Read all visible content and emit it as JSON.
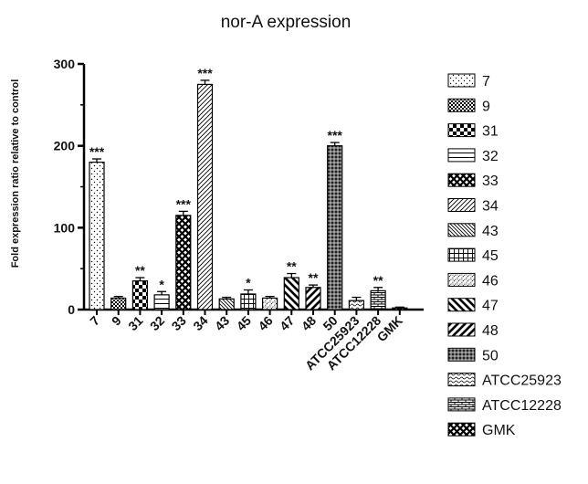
{
  "chart_data": {
    "type": "bar",
    "title": "nor-A expression",
    "ylabel": "Fold expression ratio relative to control",
    "xlabel": "",
    "ylim": [
      0,
      300
    ],
    "yticks": [
      0,
      100,
      200,
      300
    ],
    "grid": false,
    "legend": "right",
    "categories": [
      "7",
      "9",
      "31",
      "32",
      "33",
      "34",
      "43",
      "45",
      "46",
      "47",
      "48",
      "50",
      "ATCC25923",
      "ATCC12228",
      "GMK"
    ],
    "values": [
      180,
      14,
      35,
      18,
      115,
      275,
      13,
      19,
      14,
      39,
      27,
      200,
      11,
      23,
      2
    ],
    "errors": [
      4,
      2,
      4,
      4,
      5,
      5,
      2,
      5,
      2,
      5,
      3,
      4,
      4,
      4,
      1
    ],
    "significance": [
      "***",
      "",
      "**",
      "*",
      "***",
      "***",
      "",
      "*",
      "",
      "**",
      "**",
      "***",
      "",
      "**",
      ""
    ],
    "patterns": [
      "sparse-dots",
      "fine-check",
      "checker",
      "hlines",
      "cross-hatch",
      "fine-diag",
      "diag-dense",
      "grid",
      "diag-fine-dots",
      "thick-diag",
      "thick-diag2",
      "dense-grid",
      "wave",
      "brick",
      "cross-hatch"
    ]
  }
}
